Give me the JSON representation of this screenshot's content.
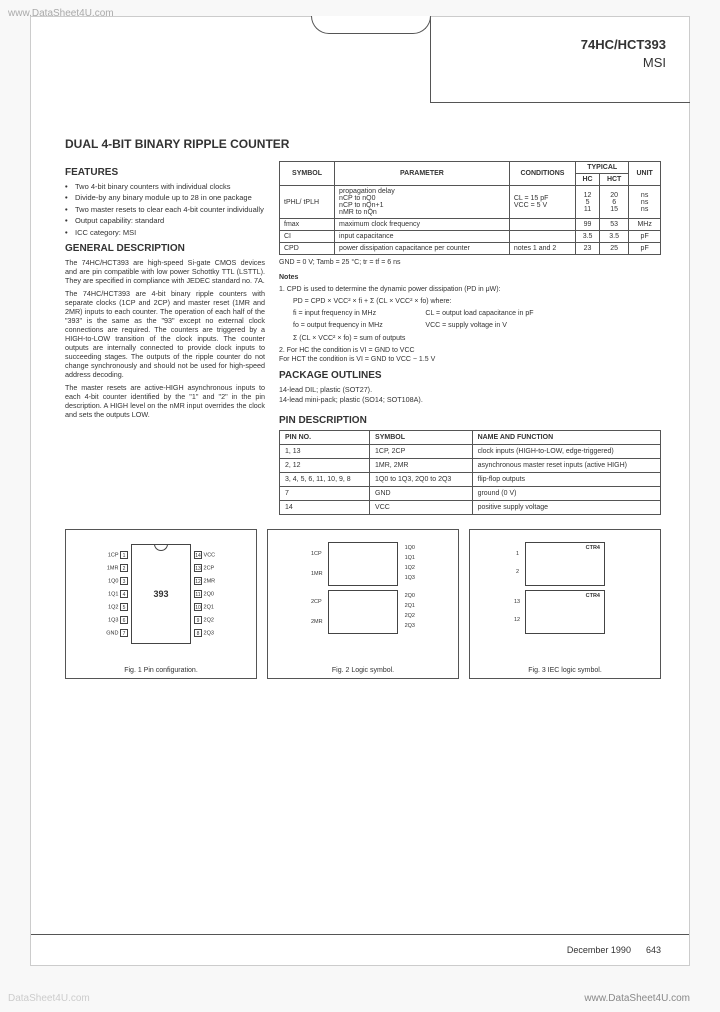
{
  "watermark": {
    "tl": "www.DataSheet4U.com",
    "mid": "www.DataSheet4U.com",
    "br": "www.DataSheet4U.com",
    "bl": "DataSheet4U.com",
    "mid2": "www.DataSheet4U.com"
  },
  "header": {
    "part": "74HC/HCT393",
    "sub": "MSI"
  },
  "title": "DUAL 4-BIT BINARY RIPPLE COUNTER",
  "features": {
    "heading": "FEATURES",
    "items": [
      "Two 4-bit binary counters with individual clocks",
      "Divide-by any binary module up to 28 in one package",
      "Two master resets to clear each 4-bit counter individually",
      "Output capability: standard",
      "ICC category: MSI"
    ]
  },
  "gendesc": {
    "heading": "GENERAL DESCRIPTION",
    "p1": "The 74HC/HCT393 are high-speed Si-gate CMOS devices and are pin compatible with low power Schottky TTL (LSTTL). They are specified in compliance with JEDEC standard no. 7A.",
    "p2": "The 74HC/HCT393 are 4-bit binary ripple counters with separate clocks (1CP and 2CP) and master reset (1MR and 2MR) inputs to each counter. The operation of each half of the \"393\" is the same as the \"93\" except no external clock connections are required. The counters are triggered by a HIGH-to-LOW transition of the clock inputs. The counter outputs are internally connected to provide clock inputs to succeeding stages. The outputs of the ripple counter do not change synchronously and should not be used for high-speed address decoding.",
    "p3": "The master resets are active-HIGH asynchronous inputs to each 4-bit counter identified by the \"1\" and \"2\" in the pin description. A HIGH level on the nMR input overrides the clock and sets the outputs LOW."
  },
  "spec": {
    "cols": [
      "SYMBOL",
      "PARAMETER",
      "CONDITIONS",
      "HC",
      "HCT",
      "UNIT"
    ],
    "typical": "TYPICAL",
    "rows": [
      {
        "sym": "tPHL/ tPLH",
        "param": "propagation delay\nnCP to nQ0\nnCP to nQn+1\nnMR to nQn",
        "cond": "CL = 15 pF\nVCC = 5 V",
        "hc": "12\n5\n11",
        "hct": "20\n6\n15",
        "unit": "ns\nns\nns"
      },
      {
        "sym": "fmax",
        "param": "maximum clock frequency",
        "cond": "",
        "hc": "99",
        "hct": "53",
        "unit": "MHz"
      },
      {
        "sym": "CI",
        "param": "input capacitance",
        "cond": "",
        "hc": "3.5",
        "hct": "3.5",
        "unit": "pF"
      },
      {
        "sym": "CPD",
        "param": "power dissipation capacitance per counter",
        "cond": "notes 1 and 2",
        "hc": "23",
        "hct": "25",
        "unit": "pF"
      }
    ],
    "gndline": "GND = 0 V; Tamb = 25 °C; tr = tf = 6 ns"
  },
  "notes": {
    "heading": "Notes",
    "n1a": "1. CPD is used to determine the dynamic power dissipation (PD in μW):",
    "n1b": "PD = CPD × VCC² × fi + Σ (CL × VCC² × fo) where:",
    "n1c": "fi = input frequency in MHz",
    "n1d": "fo = output frequency in MHz",
    "n1e": "Σ (CL × VCC² × fo) = sum of outputs",
    "n1f": "CL = output load capacitance in pF",
    "n1g": "VCC = supply voltage in V",
    "n2": "2. For HC the condition is VI = GND to VCC\n   For HCT the condition is VI = GND to VCC − 1.5 V"
  },
  "pkg": {
    "heading": "PACKAGE OUTLINES",
    "l1": "14-lead DIL; plastic (SOT27).",
    "l2": "14-lead mini-pack; plastic (SO14; SOT108A)."
  },
  "pindesc": {
    "heading": "PIN DESCRIPTION",
    "cols": [
      "PIN NO.",
      "SYMBOL",
      "NAME AND FUNCTION"
    ],
    "rows": [
      {
        "pin": "1, 13",
        "sym": "1CP, 2CP",
        "fn": "clock inputs (HIGH-to-LOW, edge-triggered)"
      },
      {
        "pin": "2, 12",
        "sym": "1MR, 2MR",
        "fn": "asynchronous master reset inputs (active HIGH)"
      },
      {
        "pin": "3, 4, 5, 6, 11, 10, 9, 8",
        "sym": "1Q0 to 1Q3, 2Q0 to 2Q3",
        "fn": "flip-flop outputs"
      },
      {
        "pin": "7",
        "sym": "GND",
        "fn": "ground (0 V)"
      },
      {
        "pin": "14",
        "sym": "VCC",
        "fn": "positive supply voltage"
      }
    ]
  },
  "figs": {
    "f1": "Fig. 1  Pin configuration.",
    "f2": "Fig. 2  Logic symbol.",
    "f3": "Fig. 3  IEC logic symbol.",
    "chipnum": "393",
    "pins_left": [
      "1CP",
      "1MR",
      "1Q0",
      "1Q1",
      "1Q2",
      "1Q3",
      "GND"
    ],
    "pins_right": [
      "VCC",
      "2CP",
      "2MR",
      "2Q0",
      "2Q1",
      "2Q2",
      "2Q3"
    ],
    "ctr": "CTR4"
  },
  "footer": {
    "date": "December 1990",
    "page": "643"
  }
}
